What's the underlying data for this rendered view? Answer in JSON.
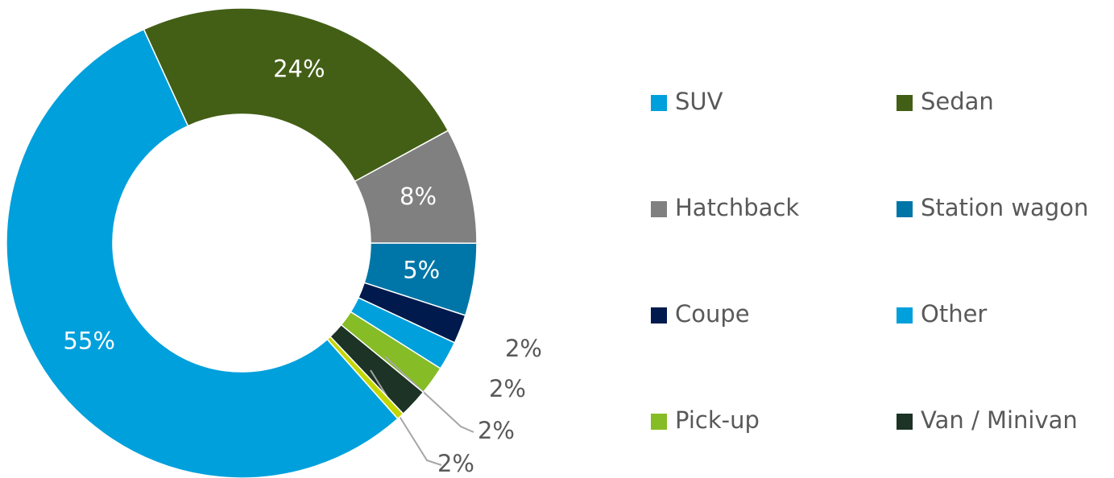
{
  "chart_data": {
    "type": "pie",
    "categories": [
      "SUV",
      "Sedan",
      "Hatchback",
      "Station wagon",
      "Coupe",
      "Other",
      "Pick-up",
      "Van / Minivan",
      null
    ],
    "values": [
      55,
      24,
      8,
      5,
      2,
      2,
      2,
      2,
      0.5
    ],
    "value_labels": [
      "55%",
      "24%",
      "8%",
      "5%",
      "2%",
      "2%",
      "2%",
      "2%",
      null
    ],
    "colors": [
      "#00a0dc",
      "#435f16",
      "#808080",
      "#0076a8",
      "#001a4d",
      "#00a0dc",
      "#86bc25",
      "#1c3325",
      "#c4d600"
    ],
    "legend": "right"
  }
}
